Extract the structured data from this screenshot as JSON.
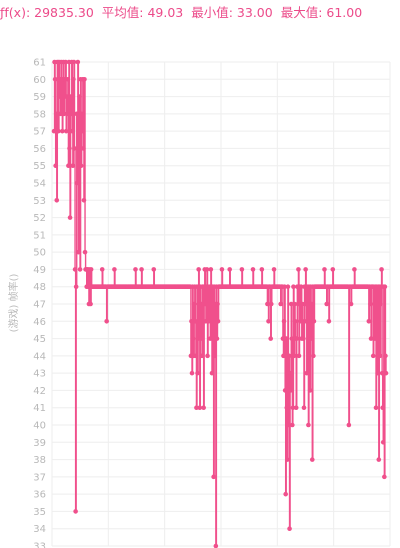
{
  "header": {
    "sum": "ƒf(x): 29835.30",
    "avg": "平均值: 49.03",
    "min": "最小值: 33.00",
    "max": "最大值: 61.00"
  },
  "chart_data": {
    "type": "line",
    "ylabel": "(游戏) 帧率()",
    "ylim": [
      33,
      61
    ],
    "y_ticks": [
      "61",
      "60",
      "59",
      "58",
      "57",
      "56",
      "55",
      "54",
      "53",
      "52",
      "51",
      "50",
      "49",
      "48",
      "47",
      "46",
      "45",
      "44",
      "43",
      "42",
      "41",
      "40",
      "39",
      "38",
      "37",
      "36",
      "35",
      "34",
      "33"
    ],
    "grid": true,
    "color": "#f0508c",
    "series": [
      {
        "name": "",
        "values": [
          57,
          61,
          60,
          55,
          58,
          53,
          61,
          60,
          57,
          61,
          59,
          60,
          58,
          61,
          59,
          57,
          60,
          61,
          58,
          59,
          60,
          61,
          57,
          59,
          58,
          60,
          55,
          61,
          56,
          52,
          59,
          58,
          61,
          57,
          55,
          60,
          61,
          56,
          49,
          35,
          48,
          58,
          54,
          61,
          50,
          57,
          59,
          49,
          60,
          55,
          58,
          57,
          60,
          56,
          53,
          60,
          50,
          49,
          49,
          48,
          49,
          49,
          48,
          47,
          49,
          48,
          47,
          49,
          48,
          48,
          48,
          48,
          48,
          48,
          48,
          48,
          48,
          48,
          48,
          48,
          48,
          48,
          48,
          48,
          48,
          48,
          48,
          49,
          48,
          48,
          48,
          48,
          48,
          48,
          48,
          46,
          48,
          48,
          48,
          48,
          48,
          48,
          48,
          48,
          48,
          48,
          48,
          48,
          48,
          49,
          48,
          48,
          48,
          48,
          48,
          48,
          48,
          48,
          48,
          48,
          48,
          48,
          48,
          48,
          48,
          48,
          48,
          48,
          48,
          48,
          48,
          48,
          48,
          48,
          48,
          48,
          48,
          48,
          48,
          48,
          48,
          48,
          48,
          48,
          48,
          48,
          48,
          49,
          48,
          48,
          48,
          48,
          48,
          48,
          48,
          48,
          48,
          48,
          49,
          48,
          48,
          48,
          48,
          48,
          48,
          48,
          48,
          48,
          48,
          48,
          48,
          48,
          48,
          48,
          48,
          48,
          48,
          48,
          48,
          48,
          49,
          48,
          48,
          48,
          48,
          48,
          48,
          48,
          48,
          48,
          48,
          48,
          48,
          48,
          48,
          48,
          48,
          48,
          48,
          48,
          48,
          48,
          48,
          48,
          48,
          48,
          48,
          48,
          48,
          48,
          48,
          48,
          48,
          48,
          48,
          48,
          48,
          48,
          48,
          48,
          48,
          48,
          48,
          48,
          48,
          48,
          48,
          48,
          48,
          48,
          48,
          48,
          48,
          48,
          48,
          48,
          48,
          48,
          48,
          48,
          48,
          48,
          48,
          48,
          48,
          48,
          48,
          44,
          46,
          43,
          48,
          45,
          44,
          47,
          48,
          46,
          44,
          41,
          48,
          43,
          45,
          49,
          48,
          41,
          48,
          45,
          47,
          44,
          48,
          48,
          41,
          48,
          49,
          47,
          46,
          48,
          49,
          44,
          48,
          46,
          47,
          48,
          45,
          49,
          48,
          43,
          48,
          46,
          37,
          48,
          44,
          47,
          33,
          48,
          45,
          47,
          46,
          48,
          48,
          48,
          48,
          48,
          48,
          49,
          48,
          48,
          48,
          48,
          48,
          48,
          48,
          48,
          48,
          48,
          48,
          48,
          48,
          49,
          48,
          48,
          48,
          48,
          48,
          48,
          48,
          48,
          48,
          48,
          48,
          48,
          48,
          48,
          48,
          48,
          48,
          48,
          48,
          48,
          48,
          49,
          48,
          48,
          48,
          48,
          48,
          48,
          48,
          48,
          48,
          48,
          48,
          48,
          48,
          48,
          48,
          48,
          48,
          48,
          48,
          49,
          48,
          48,
          48,
          48,
          48,
          48,
          48,
          48,
          48,
          48,
          48,
          48,
          48,
          48,
          48,
          49,
          48,
          48,
          48,
          48,
          48,
          48,
          48,
          48,
          48,
          47,
          48,
          46,
          48,
          48,
          48,
          45,
          47,
          48,
          48,
          48,
          48,
          49,
          48,
          48,
          48,
          48,
          48,
          48,
          48,
          48,
          48,
          48,
          48,
          47,
          48,
          48,
          48,
          45,
          44,
          46,
          48,
          42,
          36,
          45,
          41,
          38,
          48,
          40,
          44,
          34,
          43,
          42,
          47,
          45,
          40,
          41,
          48,
          44,
          47,
          46,
          45,
          41,
          45,
          48,
          47,
          49,
          44,
          48,
          46,
          47,
          48,
          45,
          47,
          46,
          45,
          41,
          48,
          47,
          49,
          46,
          43,
          48,
          47,
          40,
          48,
          46,
          42,
          48,
          45,
          47,
          38,
          48,
          44,
          46,
          48,
          48,
          48,
          48,
          48,
          48,
          48,
          48,
          48,
          48,
          48,
          48,
          48,
          48,
          48,
          48,
          48,
          48,
          49,
          48,
          48,
          48,
          47,
          48,
          48,
          48,
          46,
          48,
          48,
          48,
          48,
          48,
          48,
          49,
          48,
          48,
          48,
          48,
          48,
          48,
          48,
          48,
          48,
          48,
          48,
          48,
          48,
          48,
          48,
          48,
          48,
          48,
          48,
          48,
          48,
          48,
          48,
          48,
          48,
          48,
          48,
          48,
          40,
          48,
          48,
          48,
          47,
          48,
          48,
          48,
          48,
          48,
          49,
          48,
          48,
          48,
          48,
          48,
          48,
          48,
          48,
          48,
          48,
          48,
          48,
          48,
          48,
          48,
          48,
          48,
          48,
          48,
          48,
          48,
          48,
          48,
          48,
          48,
          46,
          48,
          48,
          47,
          45,
          48,
          48,
          48,
          44,
          48,
          47,
          45,
          48,
          41,
          48,
          45,
          43,
          48,
          38,
          48,
          44,
          47,
          48,
          49,
          43,
          41,
          39,
          48,
          37,
          48,
          44,
          43
        ]
      }
    ]
  }
}
